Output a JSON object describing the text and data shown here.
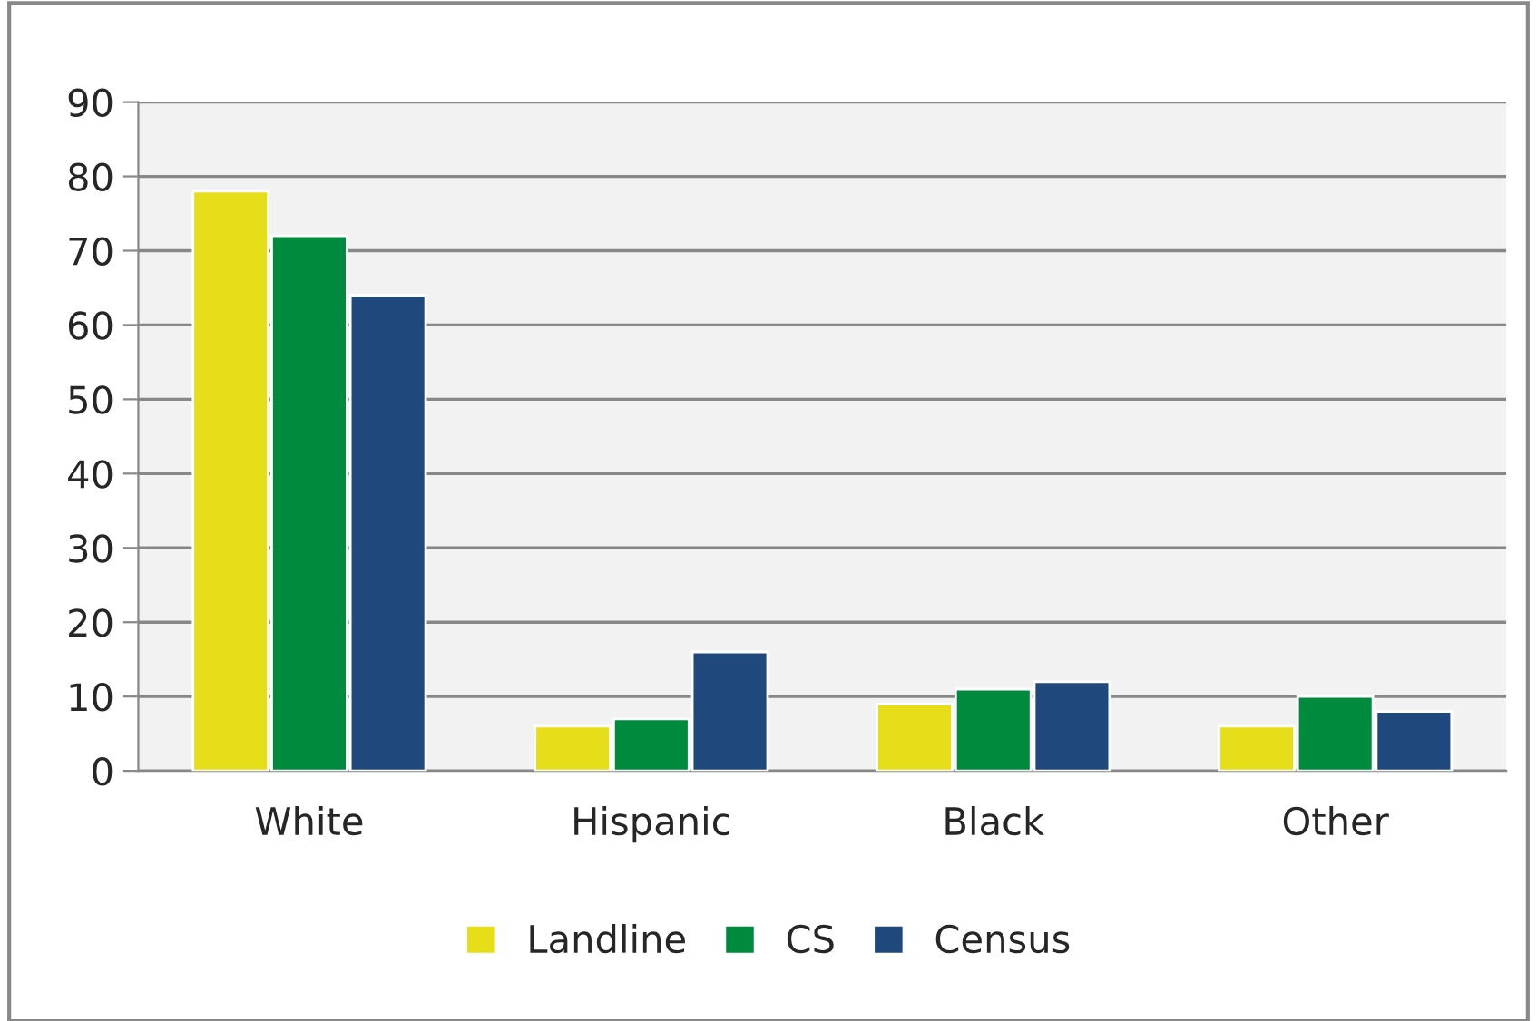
{
  "chart_data": {
    "type": "bar",
    "categories": [
      "White",
      "Hispanic",
      "Black",
      "Other"
    ],
    "series": [
      {
        "name": "Landline",
        "color": "#e6de18",
        "values": [
          78,
          6,
          9,
          6
        ]
      },
      {
        "name": "CS",
        "color": "#008a3e",
        "values": [
          72,
          7,
          11,
          10
        ]
      },
      {
        "name": "Census",
        "color": "#1f497d",
        "values": [
          64,
          16,
          12,
          8
        ]
      }
    ],
    "ylim": [
      0,
      90
    ],
    "yticks": [
      0,
      10,
      20,
      30,
      40,
      50,
      60,
      70,
      80,
      90
    ],
    "grid": "y",
    "legend": "bottom"
  }
}
